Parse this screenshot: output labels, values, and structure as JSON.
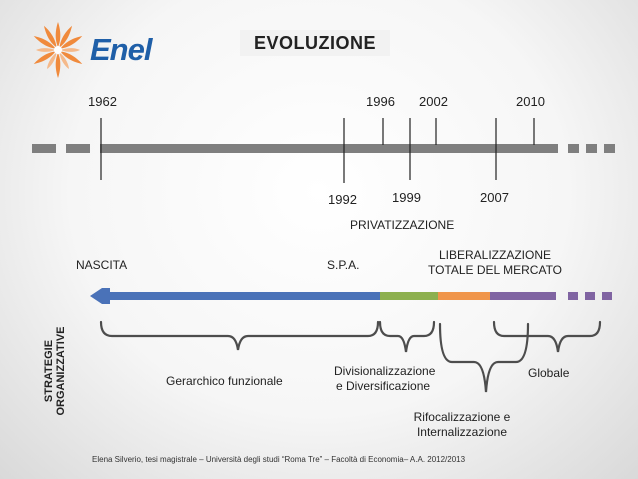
{
  "header": {
    "logo_text": "Enel",
    "title": "EVOLUZIONE"
  },
  "timeline": {
    "years_top": [
      "1962",
      "1996",
      "2002",
      "2010"
    ],
    "years_bottom": [
      "1992",
      "1999",
      "2007"
    ]
  },
  "phases": {
    "privatizzazione": "PRIVATIZZAZIONE",
    "liberalizzazione_line1": "LIBERALIZZAZIONE",
    "liberalizzazione_line2": "TOTALE DEL MERCATO",
    "nascita": "NASCITA",
    "spa": "S.P.A."
  },
  "strategies": {
    "side_label_line1": "STRATEGIE",
    "side_label_line2": "ORGANIZZATIVE",
    "gerarchico": "Gerarchico funzionale",
    "divisionalizzazione_line1": "Divisionalizzazione",
    "divisionalizzazione_line2": "e Diversificazione",
    "rifocalizzazione_line1": "Rifocalizzazione e",
    "rifocalizzazione_line2": "Internalizzazione",
    "globale": "Globale"
  },
  "colors": {
    "timeline_gray": "#7f7f7f",
    "bar_blue": "#4a72b8",
    "bar_green": "#8db04e",
    "bar_orange": "#f0954a",
    "bar_purple": "#8064a2",
    "logo_blue": "#1f5fa8",
    "logo_orange": "#f08a3c"
  },
  "footer": {
    "credit": "Elena Silverio, tesi magistrale – Università degli studi “Roma Tre” – Facoltà di Economia– A.A. 2012/2013"
  }
}
